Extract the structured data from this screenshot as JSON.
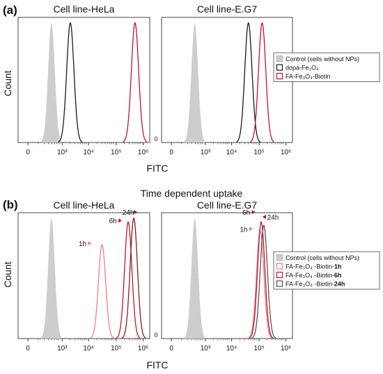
{
  "figure": {
    "panel_a_label": "(a)",
    "panel_b_label": "(b)",
    "panel_b_title": "Time dependent uptake",
    "ylabel": "Count",
    "xlabel": "FITC"
  },
  "colors": {
    "control_fill": "#cdcdcd",
    "black_line": "#1a1a1a",
    "red_line": "#c8102e",
    "light_red": "#f08080",
    "mid_red": "#c0142c",
    "dark_red": "#8b1a1a",
    "arrow_light": "#f08080",
    "arrow_dark": "#8b1a1a"
  },
  "chart_data": [
    {
      "type": "area",
      "panel": "(a)",
      "title": "Cell line-HeLa",
      "xlabel": "FITC",
      "ylabel": "Count",
      "x_scale": "log",
      "xlim": [
        0,
        1000000
      ],
      "xticks": [
        "0",
        "10³",
        "10⁴",
        "10⁵",
        "10⁶"
      ],
      "series": [
        {
          "key": "control",
          "peak_x": 400,
          "peak_y": 1.0,
          "filled": true,
          "color": "#cdcdcd"
        },
        {
          "key": "dopa",
          "peak_x": 2000,
          "peak_y": 1.0,
          "filled": false,
          "color": "#1a1a1a"
        },
        {
          "key": "fa",
          "peak_x": 500000,
          "peak_y": 1.0,
          "filled": false,
          "color": "#c8102e"
        }
      ]
    },
    {
      "type": "area",
      "panel": "(a)",
      "title": "Cell line-E.G7",
      "xlabel": "",
      "ylabel": "",
      "x_scale": "log",
      "y_zero_label": "0",
      "xticks": [
        "0",
        "10³",
        "10⁴",
        "10⁵",
        "10⁶"
      ],
      "series": [
        {
          "key": "control",
          "peak_x": 400,
          "peak_y": 1.0,
          "filled": true,
          "color": "#cdcdcd"
        },
        {
          "key": "dopa",
          "peak_x": 40000,
          "peak_y": 1.0,
          "filled": false,
          "color": "#1a1a1a"
        },
        {
          "key": "fa",
          "peak_x": 130000,
          "peak_y": 1.0,
          "filled": false,
          "color": "#c8102e"
        }
      ],
      "legend": {
        "placement": "right",
        "entries": [
          {
            "key": "control",
            "label": "Control (cells without NPs)"
          },
          {
            "key": "dopa",
            "label": "dopa-Fe₃O₄"
          },
          {
            "key": "fa",
            "label": "FA-Fe₃O₄-Biotin"
          }
        ]
      }
    },
    {
      "type": "area",
      "panel": "(b)",
      "title": "Cell line-HeLa",
      "xlabel": "FITC",
      "ylabel": "Count",
      "x_scale": "log",
      "xticks": [
        "0",
        "10³",
        "10⁴",
        "10⁵",
        "10⁶"
      ],
      "series": [
        {
          "key": "control",
          "peak_x": 400,
          "peak_y": 1.0,
          "filled": true,
          "color": "#cdcdcd"
        },
        {
          "key": "h1",
          "peak_x": 30000,
          "peak_y": 0.78,
          "filled": false,
          "color": "#f08080"
        },
        {
          "key": "h6",
          "peak_x": 280000,
          "peak_y": 0.97,
          "filled": false,
          "color": "#c0142c"
        },
        {
          "key": "h24",
          "peak_x": 450000,
          "peak_y": 1.0,
          "filled": false,
          "color": "#8b1a1a"
        }
      ],
      "annotations": [
        {
          "text": "1h",
          "x": 30000,
          "color": "#f08080"
        },
        {
          "text": "6h",
          "x": 280000,
          "color": "#c0142c"
        },
        {
          "text": "24h",
          "x": 450000,
          "color": "#8b1a1a"
        }
      ]
    },
    {
      "type": "area",
      "panel": "(b)",
      "title": "Cell line-E.G7",
      "xlabel": "",
      "ylabel": "",
      "x_scale": "log",
      "y_zero_label": "0",
      "xticks": [
        "0",
        "10³",
        "10⁴",
        "10⁵",
        "10⁶"
      ],
      "series": [
        {
          "key": "control",
          "peak_x": 400,
          "peak_y": 1.0,
          "filled": true,
          "color": "#cdcdcd"
        },
        {
          "key": "h1",
          "peak_x": 110000,
          "peak_y": 0.9,
          "filled": false,
          "color": "#f08080"
        },
        {
          "key": "h6",
          "peak_x": 120000,
          "peak_y": 0.97,
          "filled": false,
          "color": "#c0142c"
        },
        {
          "key": "h24",
          "peak_x": 150000,
          "peak_y": 0.94,
          "filled": false,
          "color": "#555555"
        }
      ],
      "annotations": [
        {
          "text": "6h",
          "x": 110000,
          "color": "#c0142c"
        },
        {
          "text": "24h",
          "x": 160000,
          "color": "#8b1a1a"
        },
        {
          "text": "1h",
          "x": 100000,
          "color": "#f08080"
        }
      ],
      "legend": {
        "placement": "right",
        "entries": [
          {
            "key": "control",
            "label": "Control (cells without NPs)"
          },
          {
            "key": "h1",
            "label": "FA-Fe₃O₄ -Biotin-",
            "suffix": "1h"
          },
          {
            "key": "h6",
            "label": "FA-Fe₃O₄ -Biotin-",
            "suffix": "6h"
          },
          {
            "key": "h24",
            "label": "FA-Fe₃O₄ -Biotin-",
            "suffix": "24h"
          }
        ]
      }
    }
  ]
}
